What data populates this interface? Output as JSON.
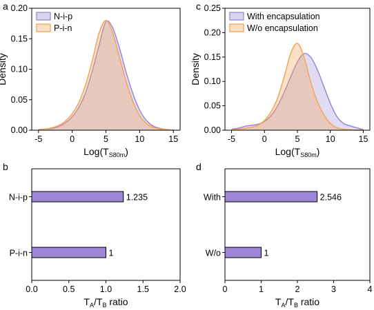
{
  "chart_data": [
    {
      "panel": "a",
      "type": "area",
      "ylabel": "Density",
      "xlabel": {
        "main": "Log(T",
        "sub": "S80m",
        "close": ")"
      },
      "xlim": [
        -6,
        16
      ],
      "ylim": [
        0,
        0.2
      ],
      "xticks": [
        "-5",
        "0",
        "5",
        "10",
        "15"
      ],
      "yticks": [
        "0.00",
        "0.05",
        "0.10",
        "0.15",
        "0.20"
      ],
      "legend_position": "top-left",
      "series": [
        {
          "name": "N-i-p",
          "color": "#9b87d6",
          "x": [
            -5,
            -4,
            -3,
            -2,
            -1,
            0,
            1,
            2,
            3,
            4,
            5,
            6,
            7,
            8,
            9,
            10,
            11,
            12,
            13,
            14,
            15
          ],
          "values": [
            0.001,
            0.002,
            0.003,
            0.006,
            0.012,
            0.022,
            0.038,
            0.062,
            0.098,
            0.14,
            0.178,
            0.168,
            0.135,
            0.095,
            0.06,
            0.033,
            0.016,
            0.007,
            0.003,
            0.001,
            0.0
          ]
        },
        {
          "name": "P-i-n",
          "color": "#f2a65a",
          "x": [
            -5,
            -4,
            -3,
            -2,
            -1,
            0,
            1,
            2,
            3,
            4,
            5,
            6,
            7,
            8,
            9,
            10,
            11,
            12,
            13,
            14,
            15
          ],
          "values": [
            0.001,
            0.002,
            0.004,
            0.008,
            0.015,
            0.027,
            0.046,
            0.075,
            0.115,
            0.16,
            0.18,
            0.16,
            0.12,
            0.08,
            0.047,
            0.024,
            0.011,
            0.005,
            0.002,
            0.001,
            0.0
          ]
        }
      ]
    },
    {
      "panel": "c",
      "type": "area",
      "ylabel": "Density",
      "xlabel": {
        "main": "Log(T",
        "sub": "S80m",
        "close": ")"
      },
      "xlim": [
        -6,
        16
      ],
      "ylim": [
        0,
        0.25
      ],
      "xticks": [
        "-5",
        "0",
        "5",
        "10",
        "15"
      ],
      "yticks": [
        "0.00",
        "0.05",
        "0.10",
        "0.15",
        "0.20",
        "0.25"
      ],
      "legend_position": "top-left",
      "series": [
        {
          "name": "With encapsulation",
          "color": "#9b87d6",
          "x": [
            -5,
            -4,
            -3,
            -2,
            -1,
            0,
            1,
            2,
            3,
            4,
            5,
            6,
            7,
            8,
            9,
            10,
            11,
            12,
            13,
            14,
            15
          ],
          "values": [
            0.002,
            0.004,
            0.008,
            0.01,
            0.012,
            0.018,
            0.03,
            0.05,
            0.078,
            0.11,
            0.14,
            0.157,
            0.15,
            0.125,
            0.09,
            0.055,
            0.028,
            0.014,
            0.009,
            0.005,
            0.001
          ]
        },
        {
          "name": "W/o encapsulation",
          "color": "#f2a65a",
          "x": [
            -5,
            -4,
            -3,
            -2,
            -1,
            0,
            1,
            2,
            3,
            4,
            5,
            6,
            7,
            8,
            9,
            10,
            11,
            12,
            13,
            14,
            15
          ],
          "values": [
            0.001,
            0.002,
            0.004,
            0.006,
            0.01,
            0.02,
            0.038,
            0.066,
            0.11,
            0.158,
            0.178,
            0.15,
            0.1,
            0.06,
            0.032,
            0.014,
            0.005,
            0.002,
            0.001,
            0.0,
            0.0
          ]
        }
      ]
    },
    {
      "panel": "b",
      "type": "bar",
      "orientation": "horizontal",
      "xlabel": {
        "a": "T",
        "a_sub": "A",
        "slash": "/T",
        "b_sub": "B",
        "rest": " ratio"
      },
      "xlim": [
        0,
        2.0
      ],
      "xticks": [
        "0.0",
        "0.5",
        "1.0",
        "1.5",
        "2.0"
      ],
      "categories": [
        "N-i-p",
        "P-i-n"
      ],
      "values": [
        1.235,
        1
      ],
      "labels": [
        "1.235",
        "1"
      ],
      "color": "#9b87d6"
    },
    {
      "panel": "d",
      "type": "bar",
      "orientation": "horizontal",
      "xlabel": {
        "a": "T",
        "a_sub": "A",
        "slash": "/T",
        "b_sub": "B",
        "rest": " ratio"
      },
      "xlim": [
        0,
        4
      ],
      "xticks": [
        "0",
        "1",
        "2",
        "3",
        "4"
      ],
      "categories": [
        "With",
        "W/o"
      ],
      "values": [
        2.546,
        1
      ],
      "labels": [
        "2.546",
        "1"
      ],
      "color": "#9b87d6"
    }
  ]
}
